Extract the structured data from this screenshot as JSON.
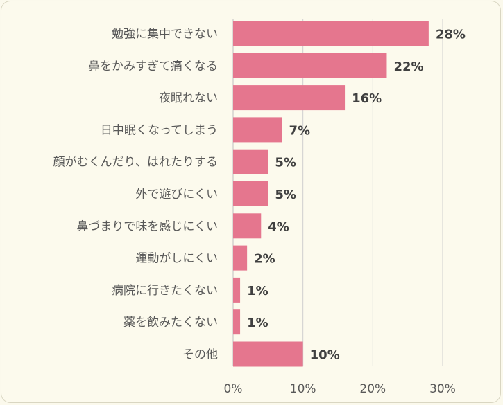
{
  "chart_data": {
    "type": "bar",
    "orientation": "horizontal",
    "categories": [
      "勉強に集中できない",
      "鼻をかみすぎて痛くなる",
      "夜眠れない",
      "日中眠くなってしまう",
      "顔がむくんだり、はれたりする",
      "外で遊びにくい",
      "鼻づまりで味を感じにくい",
      "運動がしにくい",
      "病院に行きたくない",
      "薬を飲みたくない",
      "その他"
    ],
    "values": [
      28,
      22,
      16,
      7,
      5,
      5,
      4,
      2,
      1,
      1,
      10
    ],
    "value_labels": [
      "28%",
      "22%",
      "16%",
      "7%",
      "5%",
      "5%",
      "4%",
      "2%",
      "1%",
      "1%",
      "10%"
    ],
    "xlim": [
      0,
      30
    ],
    "xticks": [
      0,
      10,
      20,
      30
    ],
    "xtick_labels": [
      "0%",
      "10%",
      "20%",
      "30%"
    ],
    "title": "",
    "xlabel": "",
    "ylabel": "",
    "grid": true,
    "bar_color": "#e5768e",
    "grid_color": "#d0d0d0",
    "background_color": "#fcfaed"
  }
}
